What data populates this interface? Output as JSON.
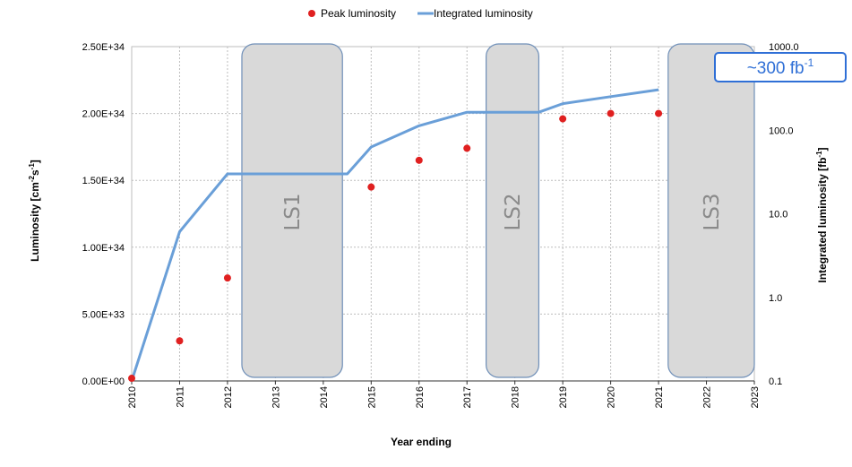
{
  "chart_data": {
    "type": "line",
    "xlabel": "Year ending",
    "ylabel": "Luminosity [cm",
    "ylabel_sup1": "-2",
    "ylabel_mid": "s",
    "ylabel_sup2": "-1",
    "ylabel_end": "]",
    "y2label": "Integrated luminosity [fb",
    "y2label_sup": "-1",
    "y2label_end": "]",
    "xlim": [
      2010,
      2023
    ],
    "ylim": [
      0,
      2.5e+34
    ],
    "y2lim": [
      0.1,
      1000
    ],
    "y2_scale": "log",
    "grid": true,
    "x_ticks": [
      "2010",
      "2011",
      "2012",
      "2013",
      "2014",
      "2015",
      "2016",
      "2017",
      "2018",
      "2019",
      "2020",
      "2021",
      "2022",
      "2023"
    ],
    "y_ticks": [
      "0.00E+00",
      "5.00E+33",
      "1.00E+34",
      "1.50E+34",
      "2.00E+34",
      "2.50E+34"
    ],
    "y2_ticks": [
      "0.1",
      "1.0",
      "10.0",
      "100.0",
      "1000.0"
    ],
    "legend_position": "top-center",
    "series": [
      {
        "name": "Peak luminosity",
        "kind": "scatter",
        "axis": "left",
        "color": "#e02020",
        "x": [
          2010,
          2011,
          2012,
          2015,
          2016,
          2017,
          2019,
          2020,
          2021
        ],
        "y": [
          2e+32,
          3e+33,
          7.7e+33,
          1.45e+34,
          1.65e+34,
          1.74e+34,
          1.96e+34,
          2e+34,
          2e+34
        ]
      },
      {
        "name": "Integrated luminosity",
        "kind": "line",
        "axis": "right",
        "color": "#6a9fd8",
        "x": [
          2010,
          2011,
          2012,
          2014.5,
          2015,
          2016,
          2017,
          2018.5,
          2019,
          2020,
          2021
        ],
        "y": [
          0.1,
          6.1,
          30,
          30,
          63,
          113,
          164,
          164,
          208,
          252,
          305
        ]
      }
    ],
    "annotations": [
      {
        "label": "LS1",
        "x_start": 2012.3,
        "x_end": 2014.4
      },
      {
        "label": "LS2",
        "x_start": 2017.4,
        "x_end": 2018.5
      },
      {
        "label": "LS3",
        "x_start": 2021.2,
        "x_end": 2023.0
      }
    ],
    "callout": {
      "text": "~300 fb",
      "sup": "-1",
      "color": "#2f6fd6"
    }
  }
}
